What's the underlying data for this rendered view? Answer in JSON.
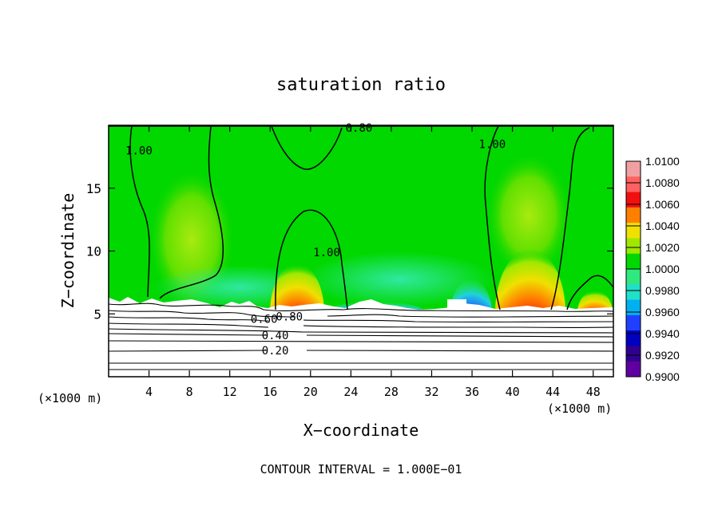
{
  "chart_data": {
    "type": "heatmap",
    "title": "saturation ratio",
    "xlabel": "X−coordinate",
    "ylabel": "Z−coordinate",
    "x_unit_left": "(×1000 m)",
    "x_unit_right": "(×1000 m)",
    "xlim": [
      0,
      50
    ],
    "ylim": [
      0,
      20
    ],
    "x_ticks": [
      4,
      8,
      12,
      16,
      20,
      24,
      28,
      32,
      36,
      40,
      44,
      48
    ],
    "y_ticks": [
      5,
      10,
      15
    ],
    "footer": "CONTOUR INTERVAL = 1.000E−01",
    "colorbar": {
      "levels": [
        "1.0100",
        "1.0080",
        "1.0060",
        "1.0040",
        "1.0020",
        "1.0000",
        "0.9980",
        "0.9960",
        "0.9940",
        "0.9920",
        "0.9900"
      ],
      "colors": [
        "#f0a0a0",
        "#ff6060",
        "#f01010",
        "#ff8000",
        "#f0e000",
        "#a0e800",
        "#00d800",
        "#30e880",
        "#20e0c8",
        "#00b0f0",
        "#2040ff",
        "#0000c0",
        "#300090",
        "#6000a0"
      ]
    },
    "contour_labels": [
      {
        "text": "0.80",
        "x": 24.8,
        "z": 19.8
      },
      {
        "text": "1.00",
        "x": 3.0,
        "z": 18.0
      },
      {
        "text": "1.00",
        "x": 38.0,
        "z": 18.5
      },
      {
        "text": "1.00",
        "x": 21.6,
        "z": 9.9
      },
      {
        "text": "0.60",
        "x": 15.4,
        "z": 4.6
      },
      {
        "text": "0.80",
        "x": 17.9,
        "z": 4.8
      },
      {
        "text": "0.40",
        "x": 16.5,
        "z": 3.3
      },
      {
        "text": "0.20",
        "x": 16.5,
        "z": 2.1
      }
    ]
  }
}
